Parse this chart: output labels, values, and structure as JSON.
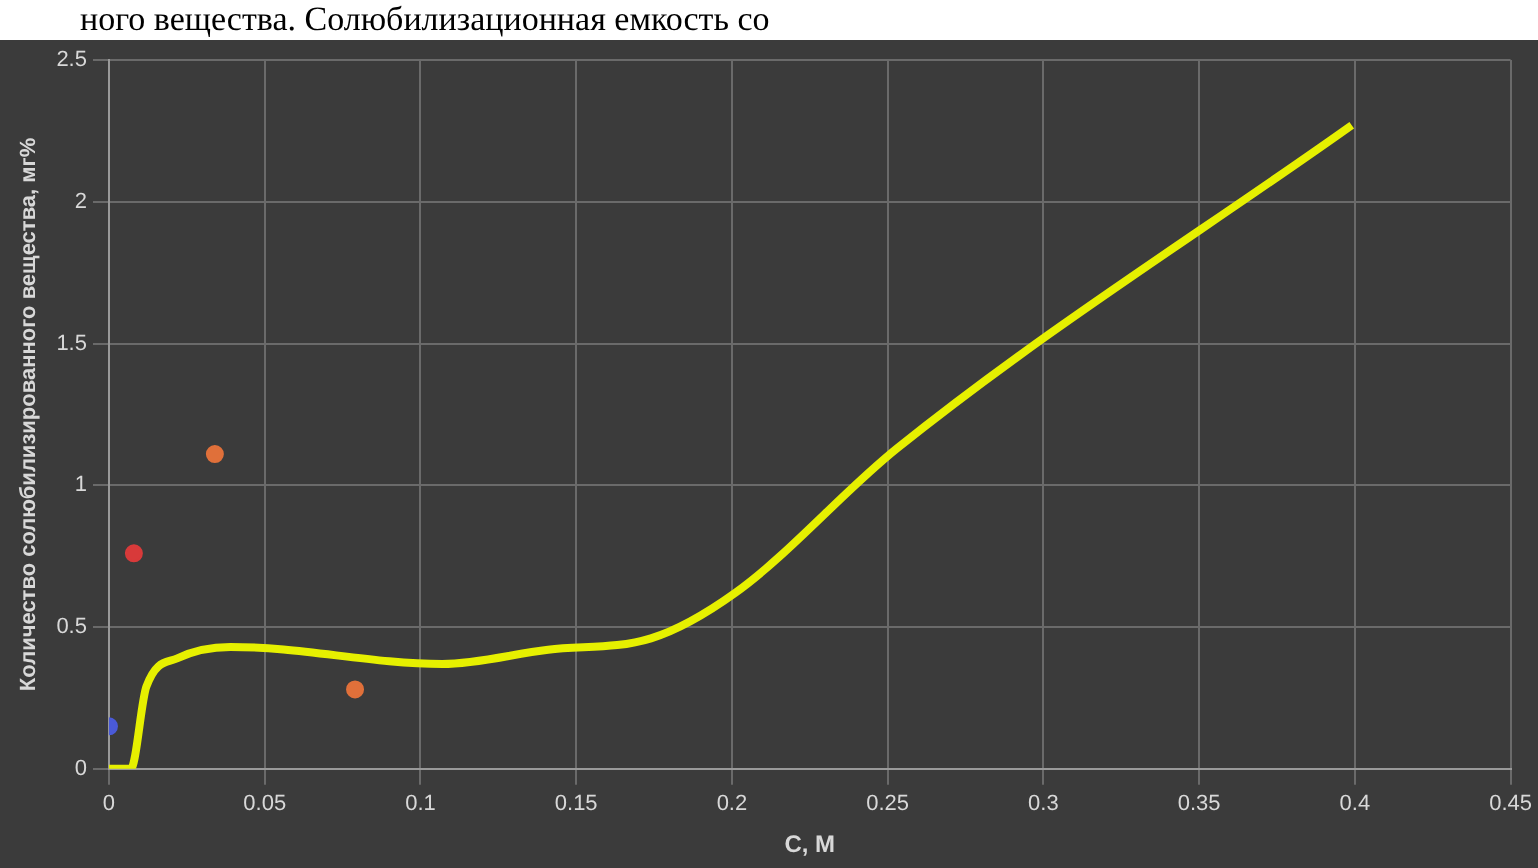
{
  "chart_data": {
    "type": "line",
    "xlabel": "C, M",
    "ylabel": "Количество солюбилизированного вещества, мг%",
    "annotations": [
      "ного вещества. Солюбилизационная емкость со"
    ],
    "xlim": [
      0,
      0.45
    ],
    "ylim": [
      0,
      2.5
    ],
    "xticks": [
      0,
      0.05,
      0.1,
      0.15,
      0.2,
      0.25,
      0.3,
      0.35,
      0.4,
      0.45
    ],
    "yticks": [
      0,
      0.5,
      1,
      1.5,
      2,
      2.5
    ],
    "grid": true,
    "series": [
      {
        "type": "line",
        "color": "#e6f000",
        "x": [
          0,
          0.007,
          0.012,
          0.022,
          0.039,
          0.107,
          0.141,
          0.174,
          0.201,
          0.253,
          0.399
        ],
        "values": [
          0,
          0,
          0.29,
          0.39,
          0.43,
          0.37,
          0.42,
          0.46,
          0.62,
          1.13,
          2.27
        ]
      },
      {
        "type": "scatter",
        "colors": [
          "#4a5ad8",
          "#d83a3a",
          "#e0703a",
          "#e0703a"
        ],
        "x": [
          0,
          0.008,
          0.034,
          0.079
        ],
        "values": [
          0.15,
          0.76,
          1.11,
          0.28
        ]
      }
    ]
  }
}
